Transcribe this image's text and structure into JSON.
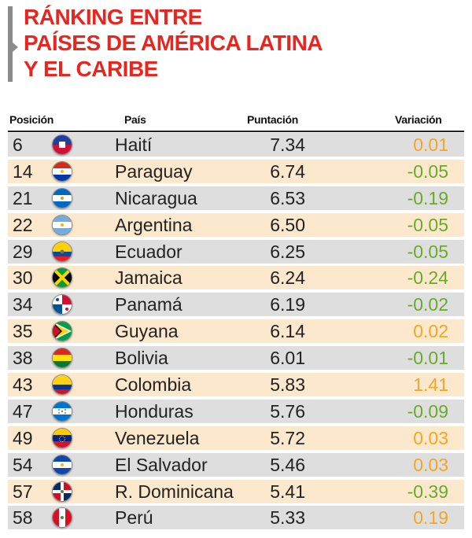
{
  "title_lines": [
    "RÁNKING ENTRE",
    "PAÍSES DE AMÉRICA LATINA",
    "Y EL CARIBE"
  ],
  "colors": {
    "title": "#e8251e",
    "positive_variation": "#f5a623",
    "negative_variation": "#6aaa2a",
    "row_odd": "#dedede",
    "row_even": "#fce8cc"
  },
  "headers": {
    "position": "Posición",
    "country": "País",
    "score": "Puntación",
    "variation": "Variación"
  },
  "chart_data": {
    "type": "table",
    "title": "RÁNKING ENTRE PAÍSES DE AMÉRICA LATINA Y EL CARIBE",
    "columns": [
      "Posición",
      "País",
      "Puntación",
      "Variación"
    ],
    "rows": [
      {
        "position": "6",
        "country": "Haití",
        "score": "7.34",
        "variation": "0.01",
        "flag": "haiti-flag-icon",
        "trend": "up"
      },
      {
        "position": "14",
        "country": "Paraguay",
        "score": "6.74",
        "variation": "-0.05",
        "flag": "paraguay-flag-icon",
        "trend": "down"
      },
      {
        "position": "21",
        "country": "Nicaragua",
        "score": "6.53",
        "variation": "-0.19",
        "flag": "nicaragua-flag-icon",
        "trend": "down"
      },
      {
        "position": "22",
        "country": "Argentina",
        "score": "6.50",
        "variation": "-0.05",
        "flag": "argentina-flag-icon",
        "trend": "down"
      },
      {
        "position": "29",
        "country": "Ecuador",
        "score": "6.25",
        "variation": "-0.05",
        "flag": "ecuador-flag-icon",
        "trend": "down"
      },
      {
        "position": "30",
        "country": "Jamaica",
        "score": "6.24",
        "variation": "-0.24",
        "flag": "jamaica-flag-icon",
        "trend": "down"
      },
      {
        "position": "34",
        "country": "Panamá",
        "score": "6.19",
        "variation": "-0.02",
        "flag": "panama-flag-icon",
        "trend": "down"
      },
      {
        "position": "35",
        "country": "Guyana",
        "score": "6.14",
        "variation": "0.02",
        "flag": "guyana-flag-icon",
        "trend": "up"
      },
      {
        "position": "38",
        "country": "Bolivia",
        "score": "6.01",
        "variation": "-0.01",
        "flag": "bolivia-flag-icon",
        "trend": "down"
      },
      {
        "position": "43",
        "country": "Colombia",
        "score": "5.83",
        "variation": "1.41",
        "flag": "colombia-flag-icon",
        "trend": "up"
      },
      {
        "position": "47",
        "country": "Honduras",
        "score": "5.76",
        "variation": "-0.09",
        "flag": "honduras-flag-icon",
        "trend": "down"
      },
      {
        "position": "49",
        "country": "Venezuela",
        "score": "5.72",
        "variation": "0.03",
        "flag": "venezuela-flag-icon",
        "trend": "up"
      },
      {
        "position": "54",
        "country": "El Salvador",
        "score": "5.46",
        "variation": "0.03",
        "flag": "el-salvador-flag-icon",
        "trend": "up"
      },
      {
        "position": "57",
        "country": "R. Dominicana",
        "score": "5.41",
        "variation": "-0.39",
        "flag": "dominican-flag-icon",
        "trend": "down"
      },
      {
        "position": "58",
        "country": "Perú",
        "score": "5.33",
        "variation": "0.19",
        "flag": "peru-flag-icon",
        "trend": "up"
      }
    ]
  }
}
